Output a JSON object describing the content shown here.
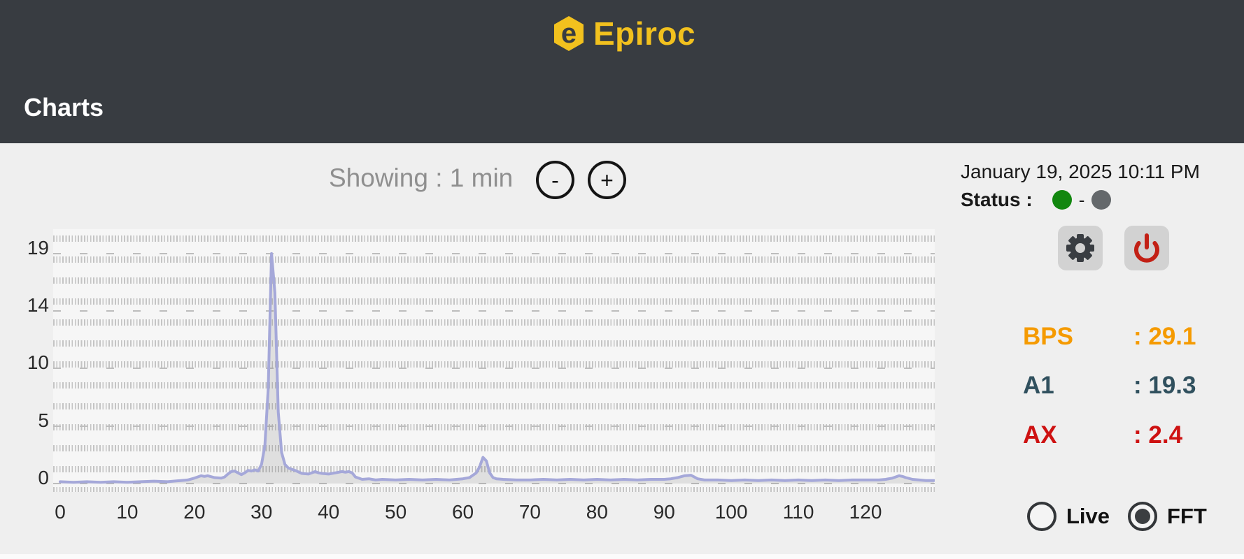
{
  "header": {
    "brand": "Epiroc",
    "logo_letter": "e",
    "title": "Charts"
  },
  "toolbar": {
    "showing_label": "Showing : 1 min",
    "zoom_out_label": "-",
    "zoom_in_label": "+"
  },
  "panel": {
    "datetime": "January 19, 2025 10:11 PM",
    "status_label": "Status :",
    "status_separator": "-",
    "status_colors": {
      "connected": "#12870f",
      "idle": "#64686b"
    },
    "metrics": [
      {
        "label": "BPS",
        "value": ": 29.1",
        "color": "#f59a00"
      },
      {
        "label": "A1",
        "value": ": 19.3",
        "color": "#30505e"
      },
      {
        "label": "AX",
        "value": ": 2.4",
        "color": "#ce1212"
      }
    ],
    "modes": [
      {
        "label": "Live",
        "selected": false
      },
      {
        "label": "FFT",
        "selected": true
      }
    ]
  },
  "chart_data": {
    "type": "area",
    "title": "",
    "xlabel": "",
    "ylabel": "",
    "x_range": [
      0,
      130.2
    ],
    "y_range": [
      0,
      20.9
    ],
    "grid": "dense dashed vertical minor lines + dashed horizontal major lines",
    "legend": "none",
    "x_tick_labels": [
      "0",
      "10",
      "20",
      "30",
      "40",
      "50",
      "60",
      "70",
      "80",
      "90",
      "100",
      "110",
      "120"
    ],
    "y_tick_labels": [
      "19",
      "14",
      "10",
      "5",
      "0"
    ],
    "y_tick_values": [
      19.3,
      14.475,
      9.65,
      4.825,
      0
    ],
    "line_color": "#a5a8d9",
    "fill_color": "rgba(105,105,105,0.16)",
    "series": [
      {
        "name": "FFT",
        "points": [
          [
            0,
            0.15
          ],
          [
            2,
            0.1
          ],
          [
            4,
            0.15
          ],
          [
            6,
            0.1
          ],
          [
            8,
            0.15
          ],
          [
            10,
            0.1
          ],
          [
            12,
            0.15
          ],
          [
            14,
            0.2
          ],
          [
            16,
            0.15
          ],
          [
            18,
            0.25
          ],
          [
            19,
            0.3
          ],
          [
            20,
            0.45
          ],
          [
            21,
            0.65
          ],
          [
            21.5,
            0.6
          ],
          [
            22,
            0.65
          ],
          [
            23,
            0.5
          ],
          [
            24,
            0.45
          ],
          [
            24.5,
            0.55
          ],
          [
            25,
            0.8
          ],
          [
            25.5,
            1.0
          ],
          [
            26,
            1.05
          ],
          [
            26.5,
            0.9
          ],
          [
            27,
            0.75
          ],
          [
            27.5,
            0.9
          ],
          [
            28,
            1.1
          ],
          [
            28.5,
            1.05
          ],
          [
            29,
            1.15
          ],
          [
            29.5,
            1.05
          ],
          [
            30,
            1.6
          ],
          [
            30.5,
            3.2
          ],
          [
            31,
            8.0
          ],
          [
            31.5,
            19.3
          ],
          [
            32,
            16.0
          ],
          [
            32.5,
            6.0
          ],
          [
            33,
            2.6
          ],
          [
            33.5,
            1.6
          ],
          [
            34,
            1.3
          ],
          [
            35,
            1.1
          ],
          [
            36,
            0.85
          ],
          [
            37,
            0.8
          ],
          [
            38,
            1.0
          ],
          [
            38.5,
            0.9
          ],
          [
            39,
            0.85
          ],
          [
            40,
            0.8
          ],
          [
            41,
            0.9
          ],
          [
            42,
            1.0
          ],
          [
            42.5,
            0.95
          ],
          [
            43,
            1.0
          ],
          [
            43.5,
            0.9
          ],
          [
            44,
            0.55
          ],
          [
            45,
            0.35
          ],
          [
            46,
            0.4
          ],
          [
            47,
            0.3
          ],
          [
            48,
            0.35
          ],
          [
            50,
            0.3
          ],
          [
            52,
            0.35
          ],
          [
            54,
            0.3
          ],
          [
            56,
            0.35
          ],
          [
            58,
            0.3
          ],
          [
            60,
            0.4
          ],
          [
            61,
            0.5
          ],
          [
            62,
            0.9
          ],
          [
            62.5,
            1.4
          ],
          [
            63,
            2.2
          ],
          [
            63.5,
            1.9
          ],
          [
            64,
            0.9
          ],
          [
            64.5,
            0.5
          ],
          [
            65,
            0.4
          ],
          [
            66,
            0.35
          ],
          [
            68,
            0.3
          ],
          [
            70,
            0.3
          ],
          [
            72,
            0.35
          ],
          [
            74,
            0.3
          ],
          [
            76,
            0.35
          ],
          [
            78,
            0.3
          ],
          [
            80,
            0.35
          ],
          [
            82,
            0.3
          ],
          [
            84,
            0.35
          ],
          [
            86,
            0.3
          ],
          [
            88,
            0.35
          ],
          [
            90,
            0.35
          ],
          [
            91,
            0.4
          ],
          [
            92,
            0.5
          ],
          [
            93,
            0.65
          ],
          [
            94,
            0.7
          ],
          [
            94.5,
            0.55
          ],
          [
            95,
            0.4
          ],
          [
            96,
            0.3
          ],
          [
            98,
            0.3
          ],
          [
            100,
            0.25
          ],
          [
            102,
            0.3
          ],
          [
            104,
            0.25
          ],
          [
            106,
            0.3
          ],
          [
            108,
            0.25
          ],
          [
            110,
            0.3
          ],
          [
            112,
            0.25
          ],
          [
            114,
            0.3
          ],
          [
            116,
            0.25
          ],
          [
            118,
            0.3
          ],
          [
            120,
            0.3
          ],
          [
            122,
            0.3
          ],
          [
            123,
            0.35
          ],
          [
            124,
            0.45
          ],
          [
            125,
            0.65
          ],
          [
            125.5,
            0.6
          ],
          [
            126,
            0.5
          ],
          [
            127,
            0.35
          ],
          [
            128,
            0.3
          ],
          [
            129,
            0.25
          ],
          [
            130.2,
            0.25
          ]
        ]
      }
    ]
  }
}
